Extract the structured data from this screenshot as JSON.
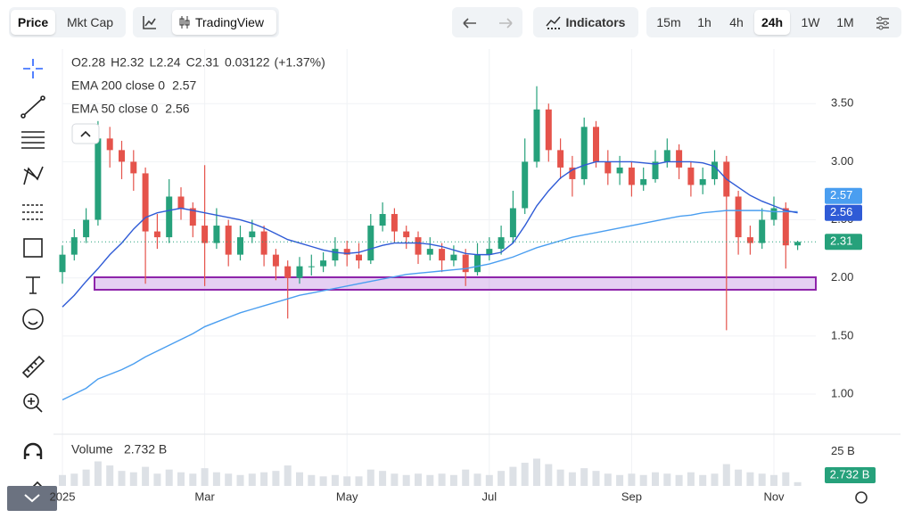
{
  "toolbar": {
    "price": "Price",
    "mkt_cap": "Mkt Cap",
    "tradingview": "TradingView",
    "indicators": "Indicators",
    "intervals": [
      "15m",
      "1h",
      "4h",
      "24h",
      "1W",
      "1M"
    ],
    "active_interval": 3
  },
  "chart_data": {
    "type": "candlestick",
    "legend": {
      "items": [
        {
          "label": "O",
          "value": 2.28
        },
        {
          "label": "H",
          "value": 2.32
        },
        {
          "label": "L",
          "value": 2.24
        },
        {
          "label": "C",
          "value": 2.31
        }
      ],
      "change": 0.03122,
      "change_pct": 1.37,
      "change_pct_label": "(+1.37%)"
    },
    "categories": [
      "2025",
      null,
      null,
      null,
      null,
      null,
      null,
      null,
      null,
      null,
      null,
      null,
      "Mar",
      null,
      null,
      null,
      null,
      null,
      null,
      null,
      null,
      null,
      null,
      null,
      "May",
      null,
      null,
      null,
      null,
      null,
      null,
      null,
      null,
      null,
      null,
      null,
      "Jul",
      null,
      null,
      null,
      null,
      null,
      null,
      null,
      null,
      null,
      null,
      null,
      "Sep",
      null,
      null,
      null,
      null,
      null,
      null,
      null,
      null,
      null,
      null,
      null,
      "Nov",
      null,
      null
    ],
    "open": [
      2.05,
      2.2,
      2.35,
      2.5,
      3.2,
      3.1,
      3.0,
      2.9,
      2.4,
      2.35,
      2.7,
      2.6,
      2.45,
      2.3,
      2.45,
      2.2,
      2.35,
      2.4,
      2.2,
      2.1,
      2.0,
      2.1,
      2.1,
      2.15,
      2.25,
      2.2,
      2.15,
      2.45,
      2.55,
      2.4,
      2.35,
      2.2,
      2.25,
      2.15,
      2.2,
      2.05,
      2.2,
      2.25,
      2.35,
      2.6,
      3.0,
      3.45,
      3.1,
      2.95,
      2.85,
      3.3,
      3.0,
      2.9,
      2.95,
      2.8,
      2.85,
      3.0,
      3.1,
      2.95,
      2.8,
      2.85,
      3.0,
      2.7,
      2.35,
      2.3,
      2.5,
      2.6,
      2.28
    ],
    "high": [
      2.28,
      2.42,
      2.6,
      3.35,
      3.3,
      3.18,
      3.1,
      2.95,
      2.55,
      2.85,
      2.78,
      2.65,
      2.97,
      2.6,
      2.5,
      2.45,
      2.5,
      2.45,
      2.25,
      2.15,
      2.18,
      2.2,
      2.22,
      2.35,
      2.32,
      2.3,
      2.55,
      2.65,
      2.6,
      2.45,
      2.4,
      2.35,
      2.3,
      2.28,
      2.25,
      2.3,
      2.35,
      2.45,
      2.75,
      3.2,
      3.65,
      3.5,
      3.2,
      3.05,
      3.38,
      3.35,
      3.1,
      3.05,
      3.0,
      2.95,
      3.1,
      3.2,
      3.15,
      3.0,
      2.95,
      3.1,
      3.05,
      2.75,
      2.45,
      2.6,
      2.7,
      2.65,
      2.32
    ],
    "low": [
      1.95,
      2.15,
      2.3,
      2.45,
      2.95,
      2.85,
      2.75,
      1.95,
      2.25,
      2.3,
      2.5,
      2.35,
      1.93,
      2.25,
      2.1,
      2.15,
      2.3,
      2.1,
      1.98,
      1.65,
      1.95,
      2.02,
      2.05,
      2.1,
      2.1,
      2.08,
      2.12,
      2.4,
      2.3,
      2.25,
      2.12,
      2.15,
      2.05,
      2.1,
      1.93,
      2.02,
      2.15,
      2.2,
      2.3,
      2.55,
      2.95,
      3.0,
      2.85,
      2.7,
      2.8,
      2.95,
      2.8,
      2.8,
      2.7,
      2.75,
      2.82,
      2.95,
      2.85,
      2.7,
      2.72,
      2.8,
      1.55,
      2.2,
      2.2,
      2.25,
      2.45,
      2.08,
      2.24
    ],
    "close": [
      2.2,
      2.35,
      2.5,
      3.2,
      3.1,
      3.0,
      2.9,
      2.4,
      2.35,
      2.7,
      2.6,
      2.45,
      2.3,
      2.45,
      2.2,
      2.35,
      2.4,
      2.2,
      2.1,
      2.0,
      2.1,
      2.1,
      2.15,
      2.25,
      2.2,
      2.15,
      2.45,
      2.55,
      2.4,
      2.35,
      2.2,
      2.25,
      2.15,
      2.2,
      2.05,
      2.2,
      2.25,
      2.35,
      2.6,
      3.0,
      3.45,
      3.1,
      2.95,
      2.85,
      3.3,
      3.0,
      2.9,
      2.95,
      2.8,
      2.85,
      3.0,
      3.1,
      2.95,
      2.8,
      2.85,
      3.0,
      2.7,
      2.35,
      2.3,
      2.5,
      2.6,
      2.28,
      2.31
    ],
    "up_color": "#26a17b",
    "down_color": "#e5534b",
    "series": [
      {
        "name": "EMA 200 close 0",
        "color": "#4a9ef0",
        "values": [
          0.95,
          1.0,
          1.05,
          1.13,
          1.17,
          1.21,
          1.26,
          1.32,
          1.37,
          1.42,
          1.47,
          1.52,
          1.58,
          1.62,
          1.66,
          1.7,
          1.73,
          1.76,
          1.79,
          1.82,
          1.85,
          1.87,
          1.89,
          1.91,
          1.93,
          1.95,
          1.97,
          1.99,
          2.01,
          2.03,
          2.04,
          2.05,
          2.06,
          2.07,
          2.08,
          2.1,
          2.12,
          2.15,
          2.18,
          2.22,
          2.26,
          2.29,
          2.32,
          2.35,
          2.37,
          2.39,
          2.41,
          2.43,
          2.45,
          2.47,
          2.49,
          2.51,
          2.53,
          2.54,
          2.56,
          2.57,
          2.58,
          2.58,
          2.58,
          2.58,
          2.57,
          2.57,
          2.57
        ]
      },
      {
        "name": "EMA 50 close 0",
        "color": "#2f5bd6",
        "values": [
          1.75,
          1.85,
          1.97,
          2.08,
          2.2,
          2.3,
          2.42,
          2.52,
          2.56,
          2.58,
          2.6,
          2.58,
          2.56,
          2.54,
          2.52,
          2.5,
          2.47,
          2.43,
          2.38,
          2.33,
          2.3,
          2.27,
          2.24,
          2.22,
          2.21,
          2.22,
          2.25,
          2.28,
          2.3,
          2.3,
          2.3,
          2.29,
          2.27,
          2.24,
          2.21,
          2.2,
          2.2,
          2.22,
          2.3,
          2.45,
          2.62,
          2.75,
          2.86,
          2.93,
          2.97,
          3.0,
          3.0,
          3.0,
          3.0,
          2.99,
          2.98,
          3.0,
          3.0,
          3.0,
          2.99,
          2.96,
          2.85,
          2.78,
          2.71,
          2.66,
          2.62,
          2.58,
          2.56
        ]
      }
    ],
    "ylim": [
      0.67,
      3.97
    ],
    "yticks": [
      {
        "value": 1,
        "label": "1.00"
      },
      {
        "value": 1.5,
        "label": "1.50"
      },
      {
        "value": 2,
        "label": "2.00"
      },
      {
        "value": 2.5,
        "label": "2.50"
      },
      {
        "value": 3,
        "label": "3.00"
      },
      {
        "value": 3.5,
        "label": "3.50"
      }
    ],
    "volume": {
      "name": "Volume",
      "values": [
        8,
        9,
        12,
        18,
        15,
        11,
        10,
        14,
        9,
        12,
        10,
        9,
        13,
        10,
        9,
        8,
        9,
        10,
        11,
        15,
        10,
        8,
        7,
        8,
        7,
        7,
        12,
        11,
        9,
        8,
        9,
        8,
        9,
        8,
        12,
        9,
        8,
        11,
        14,
        17,
        20,
        16,
        12,
        10,
        13,
        11,
        9,
        8,
        9,
        8,
        10,
        9,
        8,
        10,
        8,
        9,
        16,
        12,
        10,
        9,
        8,
        10,
        2.732
      ],
      "last_label": "2.732 B",
      "color": "#dde1e6",
      "ylim": [
        0,
        36
      ],
      "yticks": [
        {
          "value": 25,
          "label": "25 B"
        }
      ]
    },
    "grid": true
  }
}
